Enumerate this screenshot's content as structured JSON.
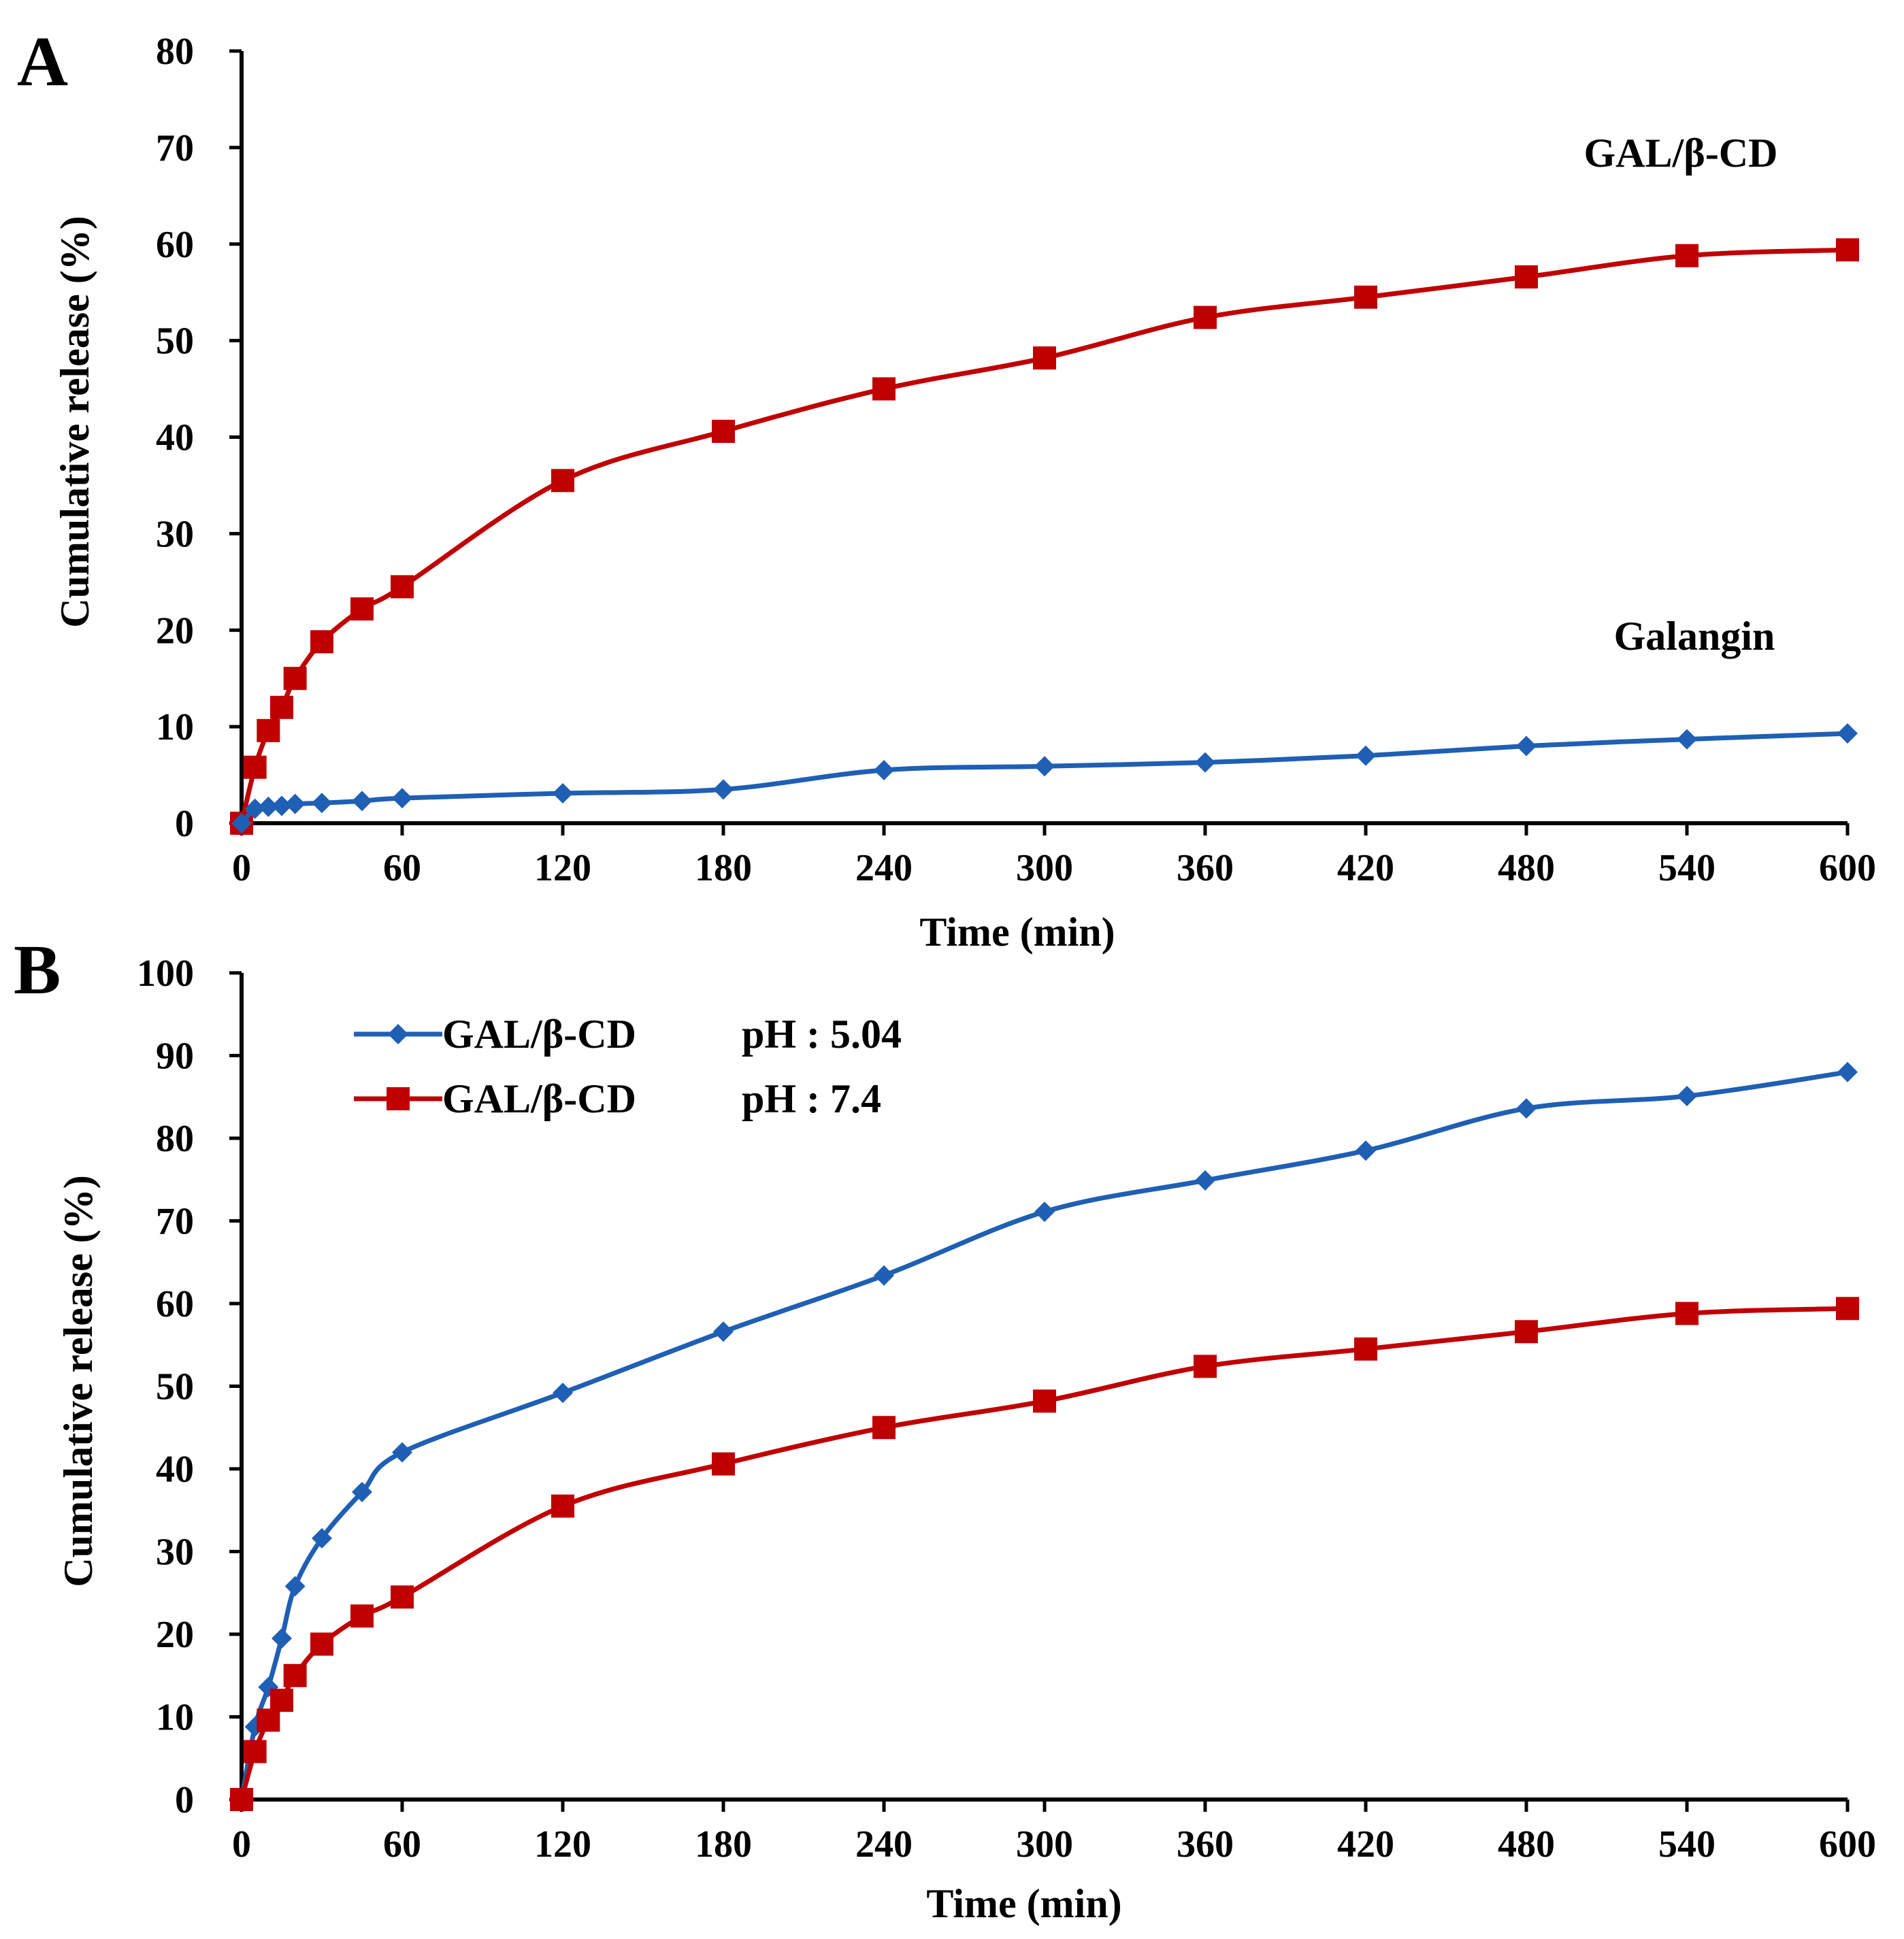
{
  "chart_data": [
    {
      "panel": "A",
      "type": "line",
      "xlabel": "Time (min)",
      "ylabel": "Cumulative release (%)",
      "xlim": [
        0,
        600
      ],
      "ylim": [
        0,
        80
      ],
      "xticks": [
        0,
        60,
        120,
        180,
        240,
        300,
        360,
        420,
        480,
        540,
        600
      ],
      "yticks": [
        0,
        10,
        20,
        30,
        40,
        50,
        60,
        70,
        80
      ],
      "annotations": [
        "GAL/β-CD",
        "Galangin"
      ],
      "series": [
        {
          "name": "GAL/β-CD",
          "color": "#c00000",
          "marker": "square",
          "x": [
            0,
            5,
            10,
            15,
            20,
            30,
            45,
            60,
            120,
            180,
            240,
            300,
            360,
            420,
            480,
            540,
            600
          ],
          "y": [
            0,
            5.8,
            9.6,
            12,
            15,
            18.8,
            22.2,
            24.5,
            35.5,
            40.6,
            45,
            48.2,
            52.4,
            54.5,
            56.6,
            58.8,
            59.4
          ]
        },
        {
          "name": "Galangin",
          "color": "#1f5fb4",
          "marker": "diamond",
          "x": [
            0,
            5,
            10,
            15,
            20,
            30,
            45,
            60,
            120,
            180,
            240,
            300,
            360,
            420,
            480,
            540,
            600
          ],
          "y": [
            0,
            1.5,
            1.7,
            1.8,
            2,
            2.1,
            2.3,
            2.6,
            3.1,
            3.5,
            5.5,
            5.9,
            6.3,
            7,
            8,
            8.7,
            9.3
          ]
        }
      ]
    },
    {
      "panel": "B",
      "type": "line",
      "xlabel": "Time (min)",
      "ylabel": "Cumulative release (%)",
      "xlim": [
        0,
        600
      ],
      "ylim": [
        0,
        100
      ],
      "xticks": [
        0,
        60,
        120,
        180,
        240,
        300,
        360,
        420,
        480,
        540,
        600
      ],
      "yticks": [
        0,
        10,
        20,
        30,
        40,
        50,
        60,
        70,
        80,
        90,
        100
      ],
      "legend_position": "top-left",
      "series": [
        {
          "name": "GAL/β-CD",
          "ph_label": "pH : 5.04",
          "color": "#1f5fb4",
          "marker": "diamond",
          "x": [
            0,
            5,
            10,
            15,
            20,
            30,
            45,
            60,
            120,
            180,
            240,
            300,
            360,
            420,
            480,
            540,
            600
          ],
          "y": [
            0,
            8.8,
            13.6,
            19.5,
            25.8,
            31.6,
            37.2,
            42,
            49.2,
            56.6,
            63.4,
            71.1,
            74.9,
            78.5,
            83.6,
            85.1,
            88
          ]
        },
        {
          "name": "GAL/β-CD",
          "ph_label": "pH : 7.4",
          "color": "#c00000",
          "marker": "square",
          "x": [
            0,
            5,
            10,
            15,
            20,
            30,
            45,
            60,
            120,
            180,
            240,
            300,
            360,
            420,
            480,
            540,
            600
          ],
          "y": [
            0,
            5.8,
            9.6,
            12,
            15,
            18.8,
            22.2,
            24.5,
            35.5,
            40.6,
            45,
            48.2,
            52.4,
            54.5,
            56.6,
            58.8,
            59.4
          ]
        }
      ]
    }
  ]
}
